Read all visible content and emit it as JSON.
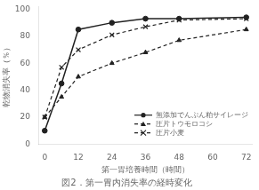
{
  "chart_data": {
    "type": "line",
    "title": "図2．第一胃内消失率の経時変化",
    "xlabel": "第一胃培養時間（時間）",
    "ylabel": "乾物消失率（％）",
    "x": [
      0,
      6,
      12,
      24,
      36,
      48,
      72
    ],
    "series": [
      {
        "name": "無添加でんぷん粕サイレージ",
        "color": "#222222",
        "marker": "circle",
        "line_style": "solid",
        "values": [
          10,
          45,
          85,
          90,
          93,
          93,
          94
        ]
      },
      {
        "name": "圧片トウモロコシ",
        "color": "#222222",
        "marker": "triangle",
        "line_style": "dashed",
        "values": [
          20,
          35,
          50,
          60,
          68,
          77,
          85
        ]
      },
      {
        "name": "圧片小麦",
        "color": "#222222",
        "marker": "x",
        "line_style": "dashed",
        "values": [
          20,
          57,
          70,
          81,
          87,
          92,
          93
        ]
      }
    ],
    "xlim": [
      -2,
      74
    ],
    "ylim": [
      0,
      102
    ],
    "xticks": [
      0,
      12,
      24,
      36,
      48,
      60,
      72
    ],
    "yticks": [
      0,
      20,
      40,
      60,
      80,
      100
    ],
    "grid": false,
    "legend": "lower right"
  }
}
